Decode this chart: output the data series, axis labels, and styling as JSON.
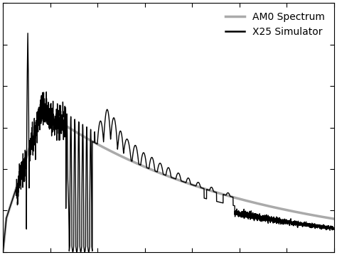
{
  "title": "",
  "legend_labels": [
    "AM0 Spectrum",
    "X25 Simulator"
  ],
  "legend_colors": [
    "#aaaaaa",
    "#000000"
  ],
  "legend_linewidths": [
    2.5,
    1.8
  ],
  "am0_color": "#aaaaaa",
  "x25_color": "#000000",
  "bg_color": "#ffffff",
  "figsize": [
    4.74,
    3.59
  ],
  "dpi": 100,
  "x_ticks_count": 7,
  "y_ticks_count": 6
}
